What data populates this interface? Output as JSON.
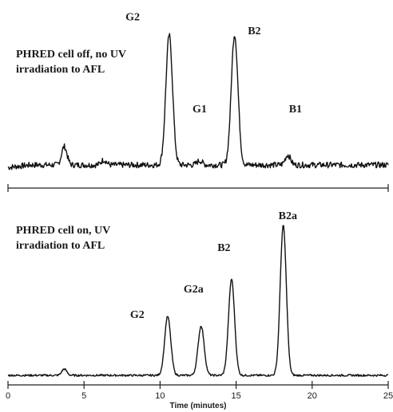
{
  "chart_data": [
    {
      "type": "line",
      "panel": "top",
      "caption_lines": [
        "PHRED cell off, no UV",
        "irradiation to AFL"
      ],
      "x_range": [
        0,
        25
      ],
      "baseline": 0,
      "noise": 0.35,
      "peaks": [
        {
          "name": "",
          "x": 3.7,
          "height": 2.2
        },
        {
          "name": "",
          "x": 6.3,
          "height": 0.6
        },
        {
          "name": "G2",
          "x": 10.6,
          "height": 15.5
        },
        {
          "name": "G1",
          "x": 12.6,
          "height": 0.5
        },
        {
          "name": "B2",
          "x": 14.9,
          "height": 15.6
        },
        {
          "name": "B1",
          "x": 18.4,
          "height": 1.2
        }
      ],
      "peak_labels": [
        {
          "text": "G2",
          "x": 8.2,
          "y": 17.3
        },
        {
          "text": "G1",
          "x": 12.6,
          "y": 6.3
        },
        {
          "text": "B2",
          "x": 16.2,
          "y": 15.6
        },
        {
          "text": "B1",
          "x": 18.9,
          "y": 6.3
        }
      ]
    },
    {
      "type": "line",
      "panel": "bottom",
      "caption_lines": [
        "PHRED cell on, UV",
        "irradiation to AFL"
      ],
      "x_range": [
        0,
        25
      ],
      "xlabel": "Time (minutes)",
      "xticks": [
        0,
        5,
        10,
        15,
        20,
        25
      ],
      "baseline": 0,
      "noise": 0.12,
      "peaks": [
        {
          "name": "",
          "x": 3.7,
          "height": 0.8
        },
        {
          "name": "G2",
          "x": 10.5,
          "height": 7.4
        },
        {
          "name": "G2a",
          "x": 12.7,
          "height": 6.2
        },
        {
          "name": "B2",
          "x": 14.7,
          "height": 12.1
        },
        {
          "name": "B2a",
          "x": 18.1,
          "height": 18.8
        }
      ],
      "peak_labels": [
        {
          "text": "G2",
          "x": 8.5,
          "y": 7.2
        },
        {
          "text": "G2a",
          "x": 12.2,
          "y": 10.4
        },
        {
          "text": "B2",
          "x": 14.2,
          "y": 15.6
        },
        {
          "text": "B2a",
          "x": 18.4,
          "y": 19.6
        }
      ]
    }
  ]
}
